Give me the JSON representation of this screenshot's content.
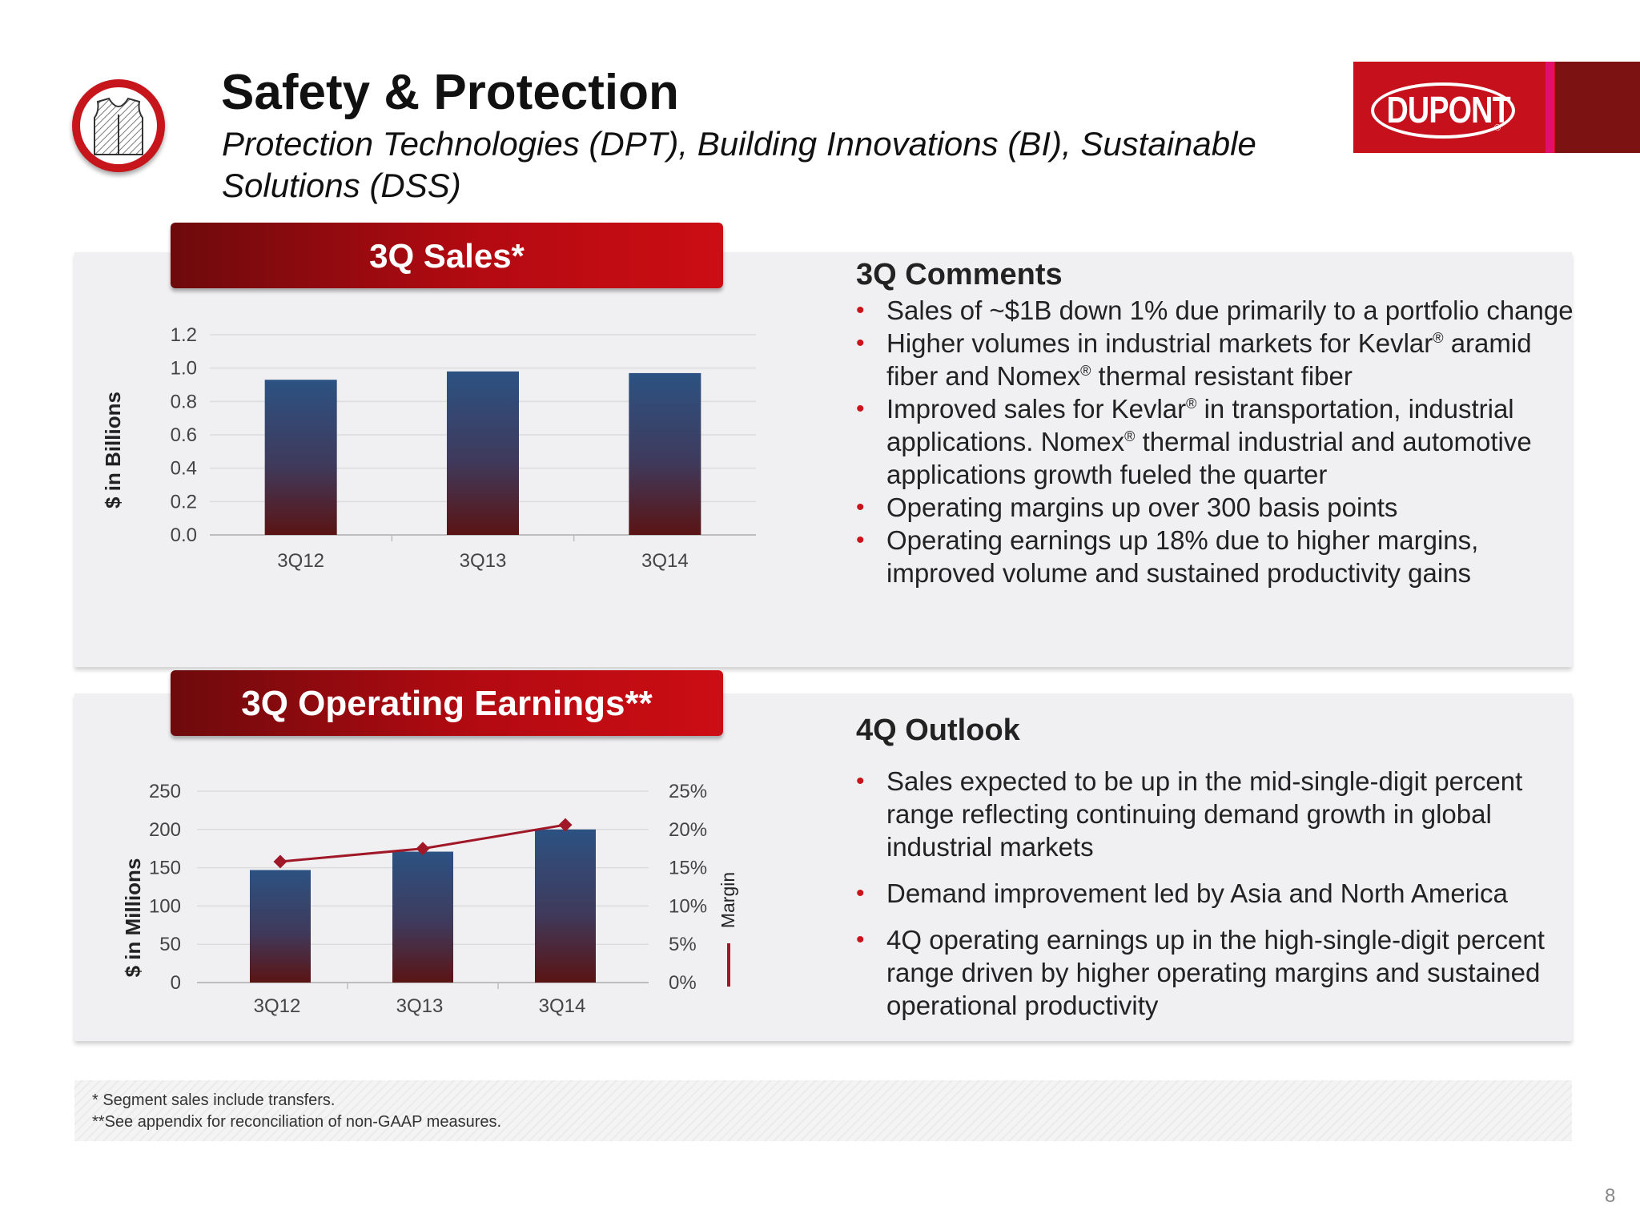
{
  "header": {
    "title": "Safety & Protection",
    "subtitle": "Protection Technologies (DPT), Building Innovations (BI), Sustainable Solutions (DSS)",
    "logo_text": "DUPONT",
    "logo_reg": "®"
  },
  "sales_panel": {
    "header": "3Q Sales*"
  },
  "earnings_panel": {
    "header": "3Q Operating Earnings**"
  },
  "comments": {
    "title": "3Q Comments",
    "items": [
      [
        "Sales of ~$1B down 1% due primarily to a portfolio change",
        "",
        ""
      ],
      [
        "Higher volumes in industrial markets for Kevlar",
        "®",
        " aramid fiber and Nomex",
        "®",
        " thermal resistant fiber"
      ],
      [
        "Improved sales for Kevlar",
        "®",
        " in transportation, industrial applications.  Nomex",
        "®",
        " thermal industrial and automotive applications growth fueled the quarter"
      ],
      [
        "Operating margins up over 300 basis points"
      ],
      [
        "Operating earnings up 18% due to higher margins, improved volume and sustained productivity gains"
      ]
    ],
    "bullet": "•"
  },
  "outlook": {
    "title": "4Q Outlook",
    "items": [
      "Sales expected to be up in the mid-single-digit percent range reflecting continuing demand growth in global industrial markets",
      "Demand improvement led by Asia and North America",
      "4Q operating earnings up in the high-single-digit percent range driven by higher operating margins and sustained operational productivity"
    ],
    "bullet": "•"
  },
  "footnotes": {
    "fn1": "* Segment sales include transfers.",
    "fn2": "**See appendix for reconciliation of non-GAAP measures."
  },
  "page_number": "8",
  "colors": {
    "accent_red": "#c6151b",
    "bar_top": "#2c5282",
    "bar_bottom": "#5a1414",
    "margin_line": "#a01828"
  },
  "chart_data": [
    {
      "type": "bar",
      "title": "3Q Sales*",
      "ylabel": "$ in Billions",
      "xlabel": "",
      "categories": [
        "3Q12",
        "3Q13",
        "3Q14"
      ],
      "values": [
        0.93,
        0.98,
        0.97
      ],
      "ylim": [
        0,
        1.2
      ],
      "yticks": [
        "0.0",
        "0.2",
        "0.4",
        "0.6",
        "0.8",
        "1.0",
        "1.2"
      ],
      "grid": true
    },
    {
      "type": "bar",
      "title": "3Q Operating Earnings**",
      "ylabel": "$ in Millions",
      "y2label": "Margin",
      "xlabel": "",
      "categories": [
        "3Q12",
        "3Q13",
        "3Q14"
      ],
      "values": [
        147,
        171,
        200
      ],
      "ylim": [
        0,
        250
      ],
      "yticks": [
        "0",
        "50",
        "100",
        "150",
        "200",
        "250"
      ],
      "y2lim": [
        0,
        25
      ],
      "y2ticks": [
        "0%",
        "5%",
        "10%",
        "15%",
        "20%",
        "25%"
      ],
      "series": [
        {
          "name": "Margin",
          "axis": "secondary",
          "type": "line",
          "values": [
            15.8,
            17.5,
            20.6
          ]
        }
      ],
      "grid": true
    }
  ]
}
